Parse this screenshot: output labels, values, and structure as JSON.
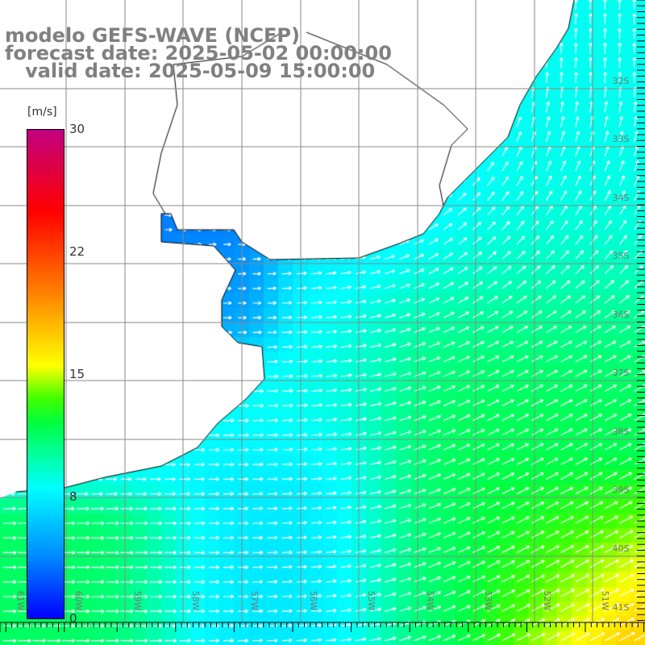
{
  "title": {
    "model": "modelo GEFS-WAVE (NCEP)",
    "forecast": "forecast date: 2025-05-02 00:00:00",
    "valid": "   valid date: 2025-05-09 15:00:00"
  },
  "colorbar": {
    "units": "[m/s]",
    "ticks": [
      {
        "value": 30,
        "label": "30"
      },
      {
        "value": 22,
        "label": "22"
      },
      {
        "value": 15,
        "label": "15"
      },
      {
        "value": 8,
        "label": "8"
      },
      {
        "value": 0,
        "label": "0"
      }
    ],
    "colors": [
      "#0000ff",
      "#0090ff",
      "#00ffff",
      "#00ff40",
      "#ffff00",
      "#ff8000",
      "#ff0000",
      "#c00080"
    ]
  },
  "lat_labels": [
    "32S",
    "33S",
    "34S",
    "35S",
    "36S",
    "37S",
    "38S",
    "39S",
    "40S",
    "41S"
  ],
  "lon_labels": [
    "61W",
    "60W",
    "59W",
    "58W",
    "57W",
    "56W",
    "55W",
    "54W",
    "53W",
    "52W",
    "51W"
  ]
}
